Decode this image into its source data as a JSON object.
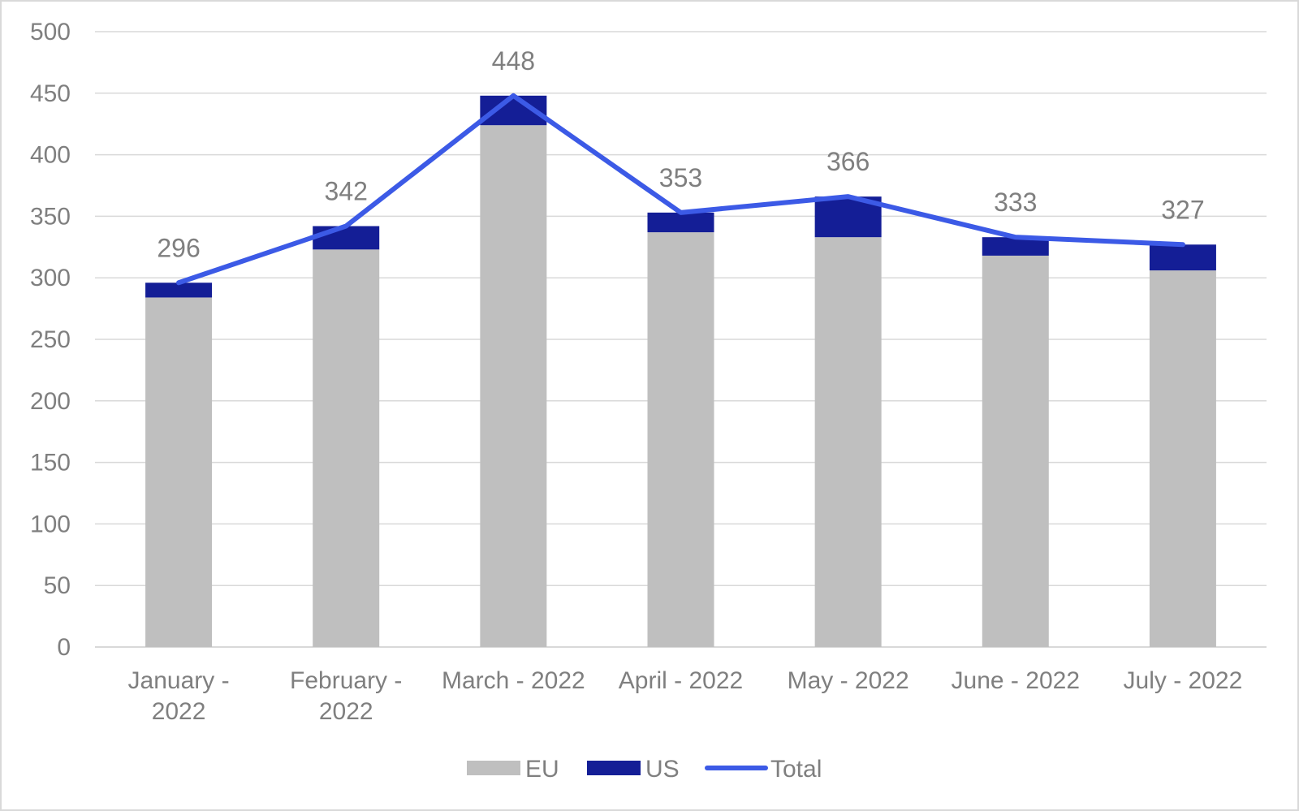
{
  "chart_data": {
    "type": "bar",
    "stacked": true,
    "categories": [
      [
        "January -",
        "2022"
      ],
      [
        "February -",
        "2022"
      ],
      [
        "March - 2022"
      ],
      [
        "April - 2022"
      ],
      [
        "May - 2022"
      ],
      [
        "June - 2022"
      ],
      [
        "July - 2022"
      ]
    ],
    "series": [
      {
        "name": "EU",
        "type": "bar",
        "color": "#bfbfbf",
        "values": [
          284,
          323,
          424,
          337,
          333,
          318,
          306
        ]
      },
      {
        "name": "US",
        "type": "bar",
        "color": "#141e96",
        "values": [
          12,
          19,
          24,
          16,
          33,
          15,
          21
        ]
      },
      {
        "name": "Total",
        "type": "line",
        "color": "#3c5ae6",
        "values": [
          296,
          342,
          448,
          353,
          366,
          333,
          327
        ]
      }
    ],
    "data_labels": [
      "296",
      "342",
      "448",
      "353",
      "366",
      "333",
      "327"
    ],
    "yticks": [
      "0",
      "50",
      "100",
      "150",
      "200",
      "250",
      "300",
      "350",
      "400",
      "450",
      "500"
    ],
    "ylim": [
      0,
      500
    ],
    "grid": true,
    "legend": {
      "position": "bottom",
      "entries": [
        "EU",
        "US",
        "Total"
      ]
    },
    "title": "",
    "xlabel": "",
    "ylabel": ""
  }
}
